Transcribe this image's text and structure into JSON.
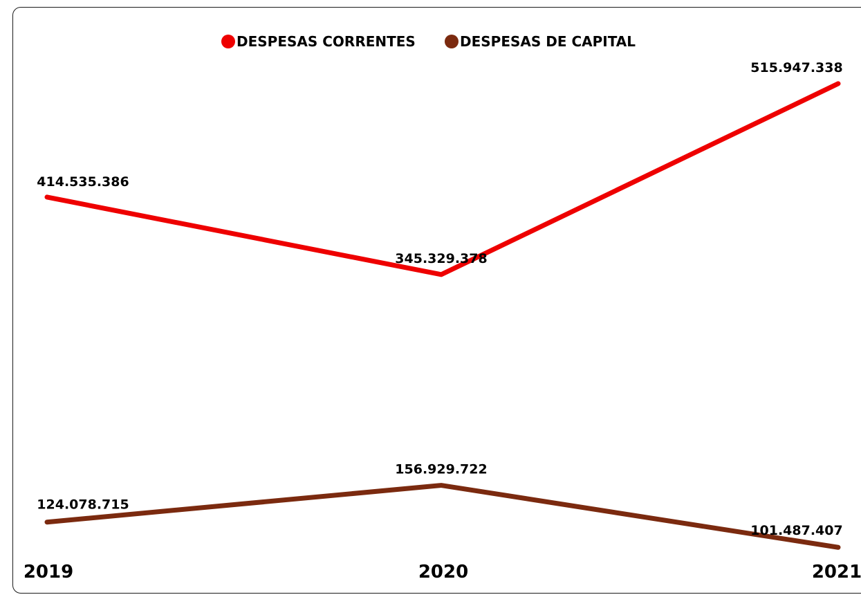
{
  "chart_data": {
    "type": "line",
    "categories": [
      "2019",
      "2020",
      "2021"
    ],
    "series": [
      {
        "name": "DESPESAS CORRENTES",
        "color": "#ee0000",
        "values": [
          414535386,
          345329378,
          515947338
        ],
        "labels": [
          "414.535.386",
          "345.329.378",
          "515.947.338"
        ]
      },
      {
        "name": "DESPESAS DE CAPITAL",
        "color": "#7b2a0f",
        "values": [
          124078715,
          156929722,
          101487407
        ],
        "labels": [
          "124.078.715",
          "156.929.722",
          "101.487.407"
        ]
      }
    ],
    "legend_position": "top-center",
    "grid": false,
    "y_axis_visible": false,
    "ylim": [
      80000000,
      540000000
    ]
  }
}
